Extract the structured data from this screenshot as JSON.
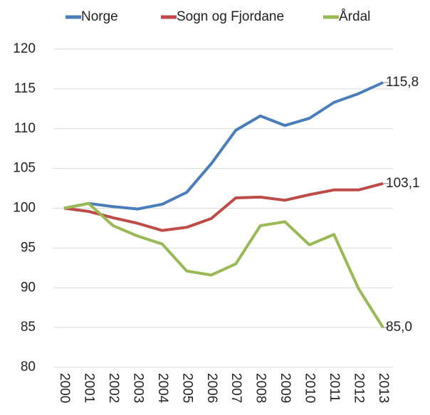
{
  "chart_data": {
    "type": "line",
    "categories": [
      "2000",
      "2001",
      "2002",
      "2003",
      "2004",
      "2005",
      "2006",
      "2007",
      "2008",
      "2009",
      "2010",
      "2011",
      "2012",
      "2013"
    ],
    "series": [
      {
        "name": "Norge",
        "color": "#4a7ebb",
        "values": [
          100,
          100.6,
          100.2,
          99.9,
          100.5,
          102,
          105.6,
          109.8,
          111.6,
          110.4,
          111.3,
          113.3,
          114.4,
          115.8
        ],
        "value_labels": [
          null,
          null,
          null,
          null,
          null,
          null,
          null,
          null,
          null,
          null,
          null,
          null,
          null,
          "115,8"
        ]
      },
      {
        "name": "Sogn og Fjordane",
        "color": "#be4b48",
        "values": [
          100,
          99.6,
          98.8,
          98.1,
          97.2,
          97.6,
          98.7,
          101.3,
          101.4,
          101,
          101.7,
          102.3,
          102.3,
          103.1
        ],
        "value_labels": [
          null,
          null,
          null,
          null,
          null,
          null,
          null,
          null,
          null,
          null,
          null,
          null,
          null,
          "103,1"
        ]
      },
      {
        "name": "Årdal",
        "color": "#98b954",
        "values": [
          100,
          100.6,
          97.8,
          96.5,
          95.5,
          92.1,
          91.6,
          93,
          97.8,
          98.3,
          95.4,
          96.7,
          89.9,
          85
        ],
        "value_labels": [
          null,
          null,
          null,
          null,
          null,
          null,
          null,
          null,
          null,
          null,
          null,
          null,
          null,
          "85,0"
        ]
      }
    ],
    "ylim": [
      80,
      120
    ],
    "yticks": [
      80,
      85,
      90,
      95,
      100,
      105,
      110,
      115,
      120
    ],
    "grid": true,
    "legend": "top"
  }
}
